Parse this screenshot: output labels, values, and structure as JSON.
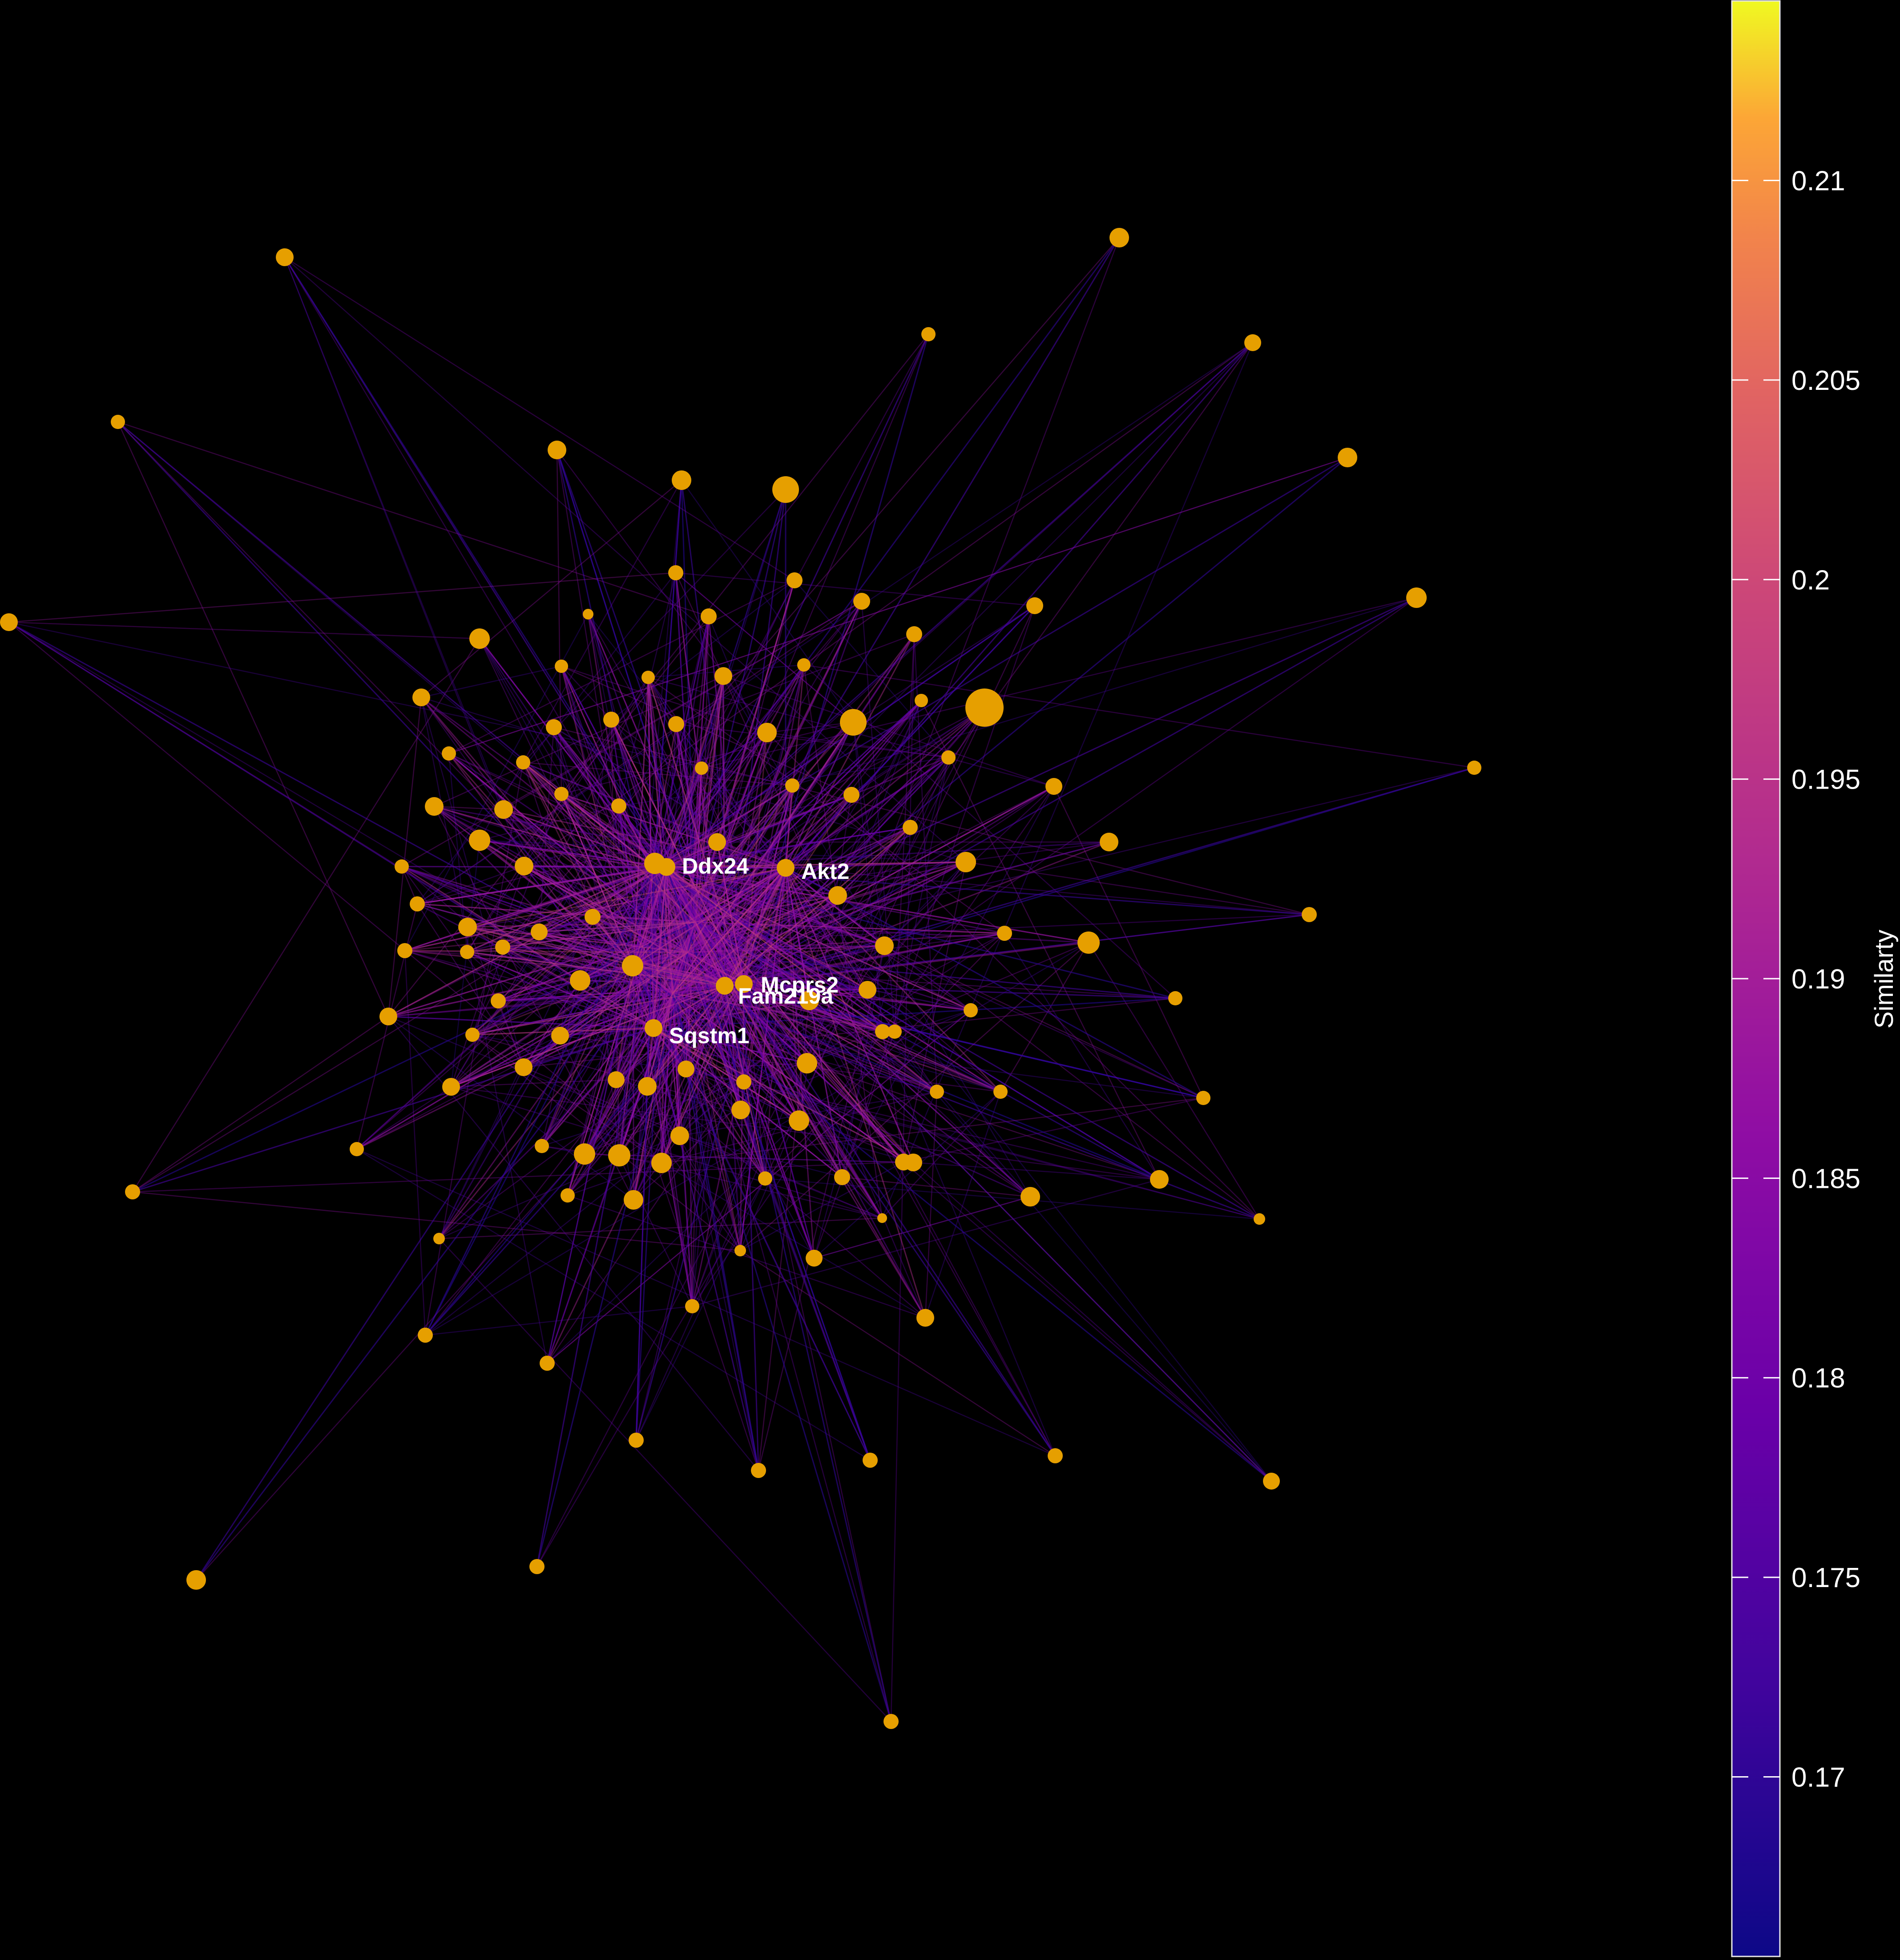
{
  "network": {
    "legend": {
      "title": "Similarty",
      "colormap": "plasma",
      "range": [
        0.1655,
        0.2145
      ],
      "ticks": [
        {
          "value": 0.21,
          "label": "0.21"
        },
        {
          "value": 0.205,
          "label": "0.205"
        },
        {
          "value": 0.2,
          "label": "0.2"
        },
        {
          "value": 0.195,
          "label": "0.195"
        },
        {
          "value": 0.19,
          "label": "0.19"
        },
        {
          "value": 0.185,
          "label": "0.185"
        },
        {
          "value": 0.18,
          "label": "0.18"
        },
        {
          "value": 0.175,
          "label": "0.175"
        },
        {
          "value": 0.17,
          "label": "0.17"
        }
      ]
    },
    "labeled_nodes": [
      "Ddx24",
      "Akt2",
      "Mcprs2",
      "Fam219a",
      "Sqstm1"
    ],
    "node_color": "#E69F00",
    "background": "#000000"
  }
}
